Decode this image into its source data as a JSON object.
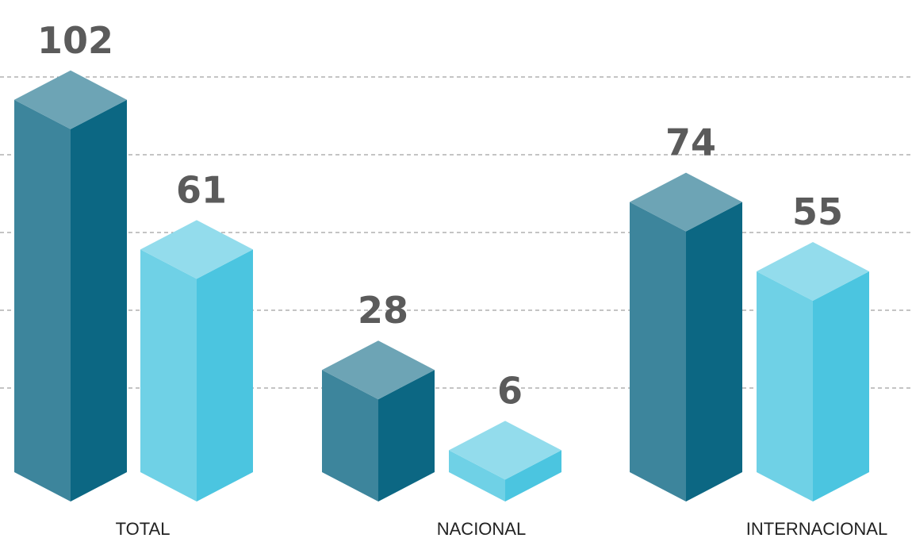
{
  "chart_data": {
    "type": "bar3d",
    "categories": [
      "TOTAL",
      "NACIONAL",
      "INTERNACIONAL"
    ],
    "series": [
      {
        "color": "#0c6783",
        "values": [
          102,
          28,
          74
        ]
      },
      {
        "color": "#4bc5e0",
        "values": [
          61,
          6,
          55
        ]
      }
    ],
    "ylim": [
      0,
      110
    ]
  }
}
